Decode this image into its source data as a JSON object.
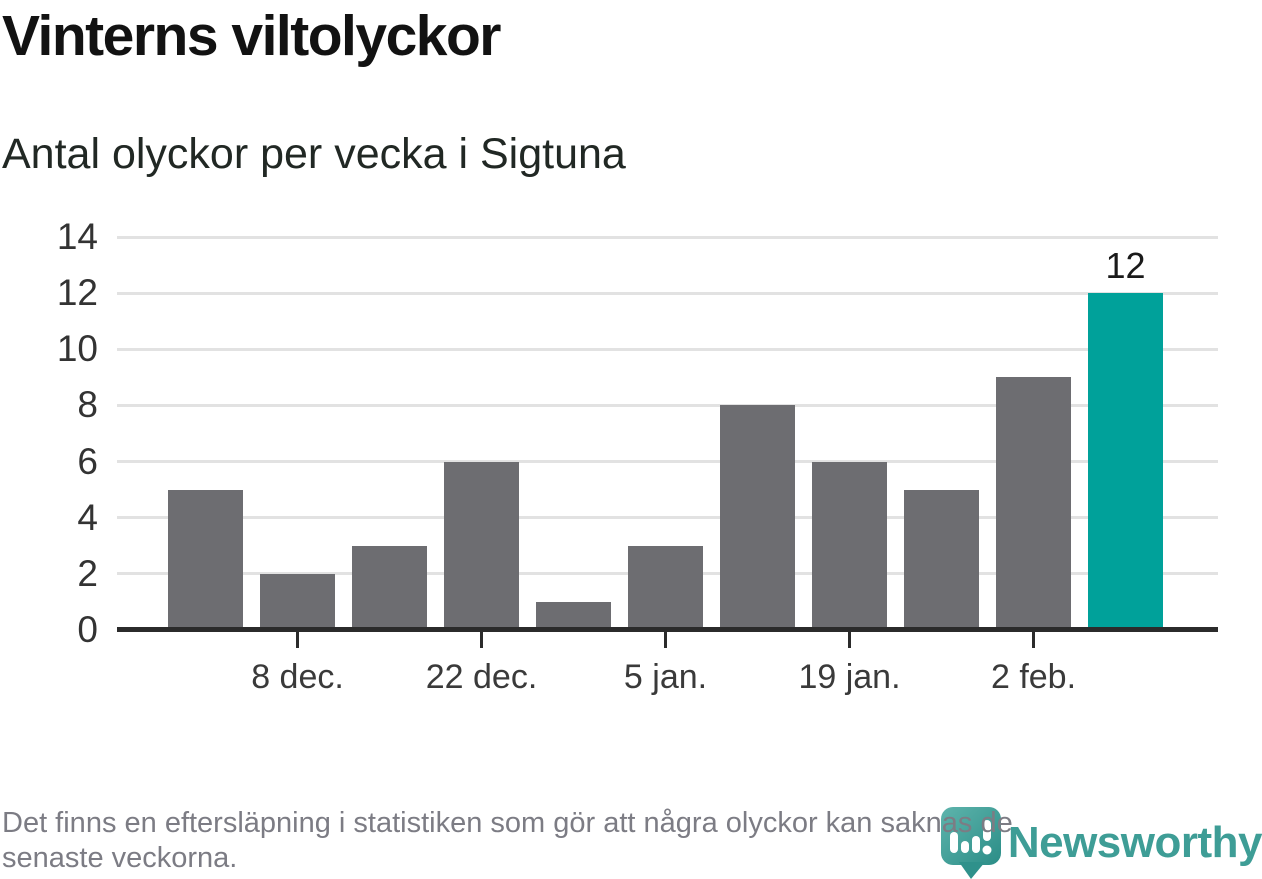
{
  "header": {
    "title": "Vinterns viltolyckor",
    "subtitle": "Antal olyckor per vecka i Sigtuna"
  },
  "footer": {
    "line1": "Det finns en eftersläpning i statistiken som gör att några olyckor kan saknas de",
    "line2": "senaste veckorna.",
    "full_text": "Det finns en eftersläpning i statistiken som gör att några olyckor kan saknas de senaste veckorna."
  },
  "logo": {
    "name": "Newsworthy",
    "icon": "newsworthy-bubble-chart-icon",
    "text_color": "#3e9d96",
    "icon_color_light": "#5eb4ac",
    "icon_color_dark": "#2b8d87"
  },
  "chart_data": {
    "type": "bar",
    "title": "Vinterns viltolyckor",
    "subtitle": "Antal olyckor per vecka i Sigtuna",
    "values": [
      5,
      2,
      3,
      6,
      1,
      3,
      8,
      6,
      5,
      9,
      12
    ],
    "x_tick_indices": [
      1,
      3,
      5,
      7,
      9
    ],
    "x_tick_labels": [
      "8 dec.",
      "22 dec.",
      "5 jan.",
      "19 jan.",
      "2 feb."
    ],
    "y_ticks": [
      0,
      2,
      4,
      6,
      8,
      10,
      12,
      14
    ],
    "ylim": [
      0,
      14
    ],
    "grid": "horizontal",
    "legend": "none",
    "bar_color": "#6d6d71",
    "highlight_index": 10,
    "highlight_color": "#00a19a",
    "data_labels": [
      {
        "index": 10,
        "text": "12"
      }
    ],
    "gridline_color": "#e2e2e2",
    "axis_color": "#2b2b2b"
  }
}
